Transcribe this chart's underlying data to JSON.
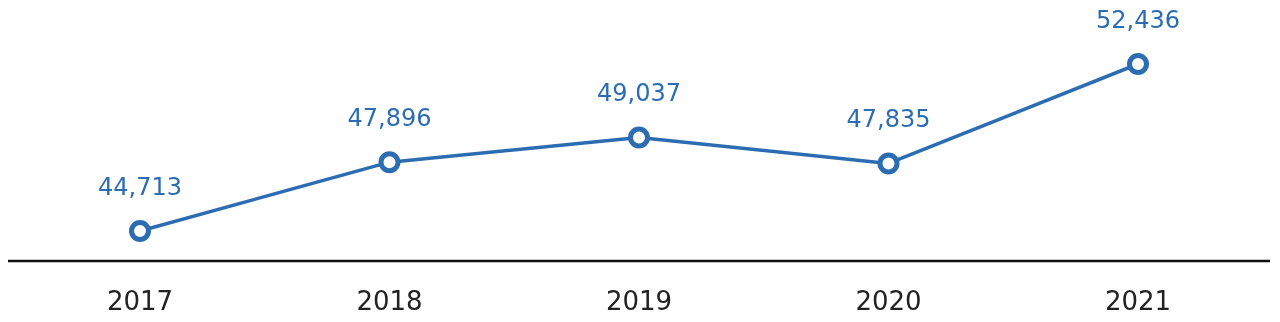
{
  "chart_data": {
    "type": "line",
    "categories": [
      "2017",
      "2018",
      "2019",
      "2020",
      "2021"
    ],
    "series": [
      {
        "color": "#2b6cb3",
        "values": [
          44713,
          47896,
          49037,
          47835,
          52436
        ],
        "value_labels": [
          "44,713",
          "47,896",
          "49,037",
          "47,835",
          "52,436"
        ]
      }
    ],
    "marker": "circle",
    "line_style": "solid",
    "tick_labels": "x"
  }
}
